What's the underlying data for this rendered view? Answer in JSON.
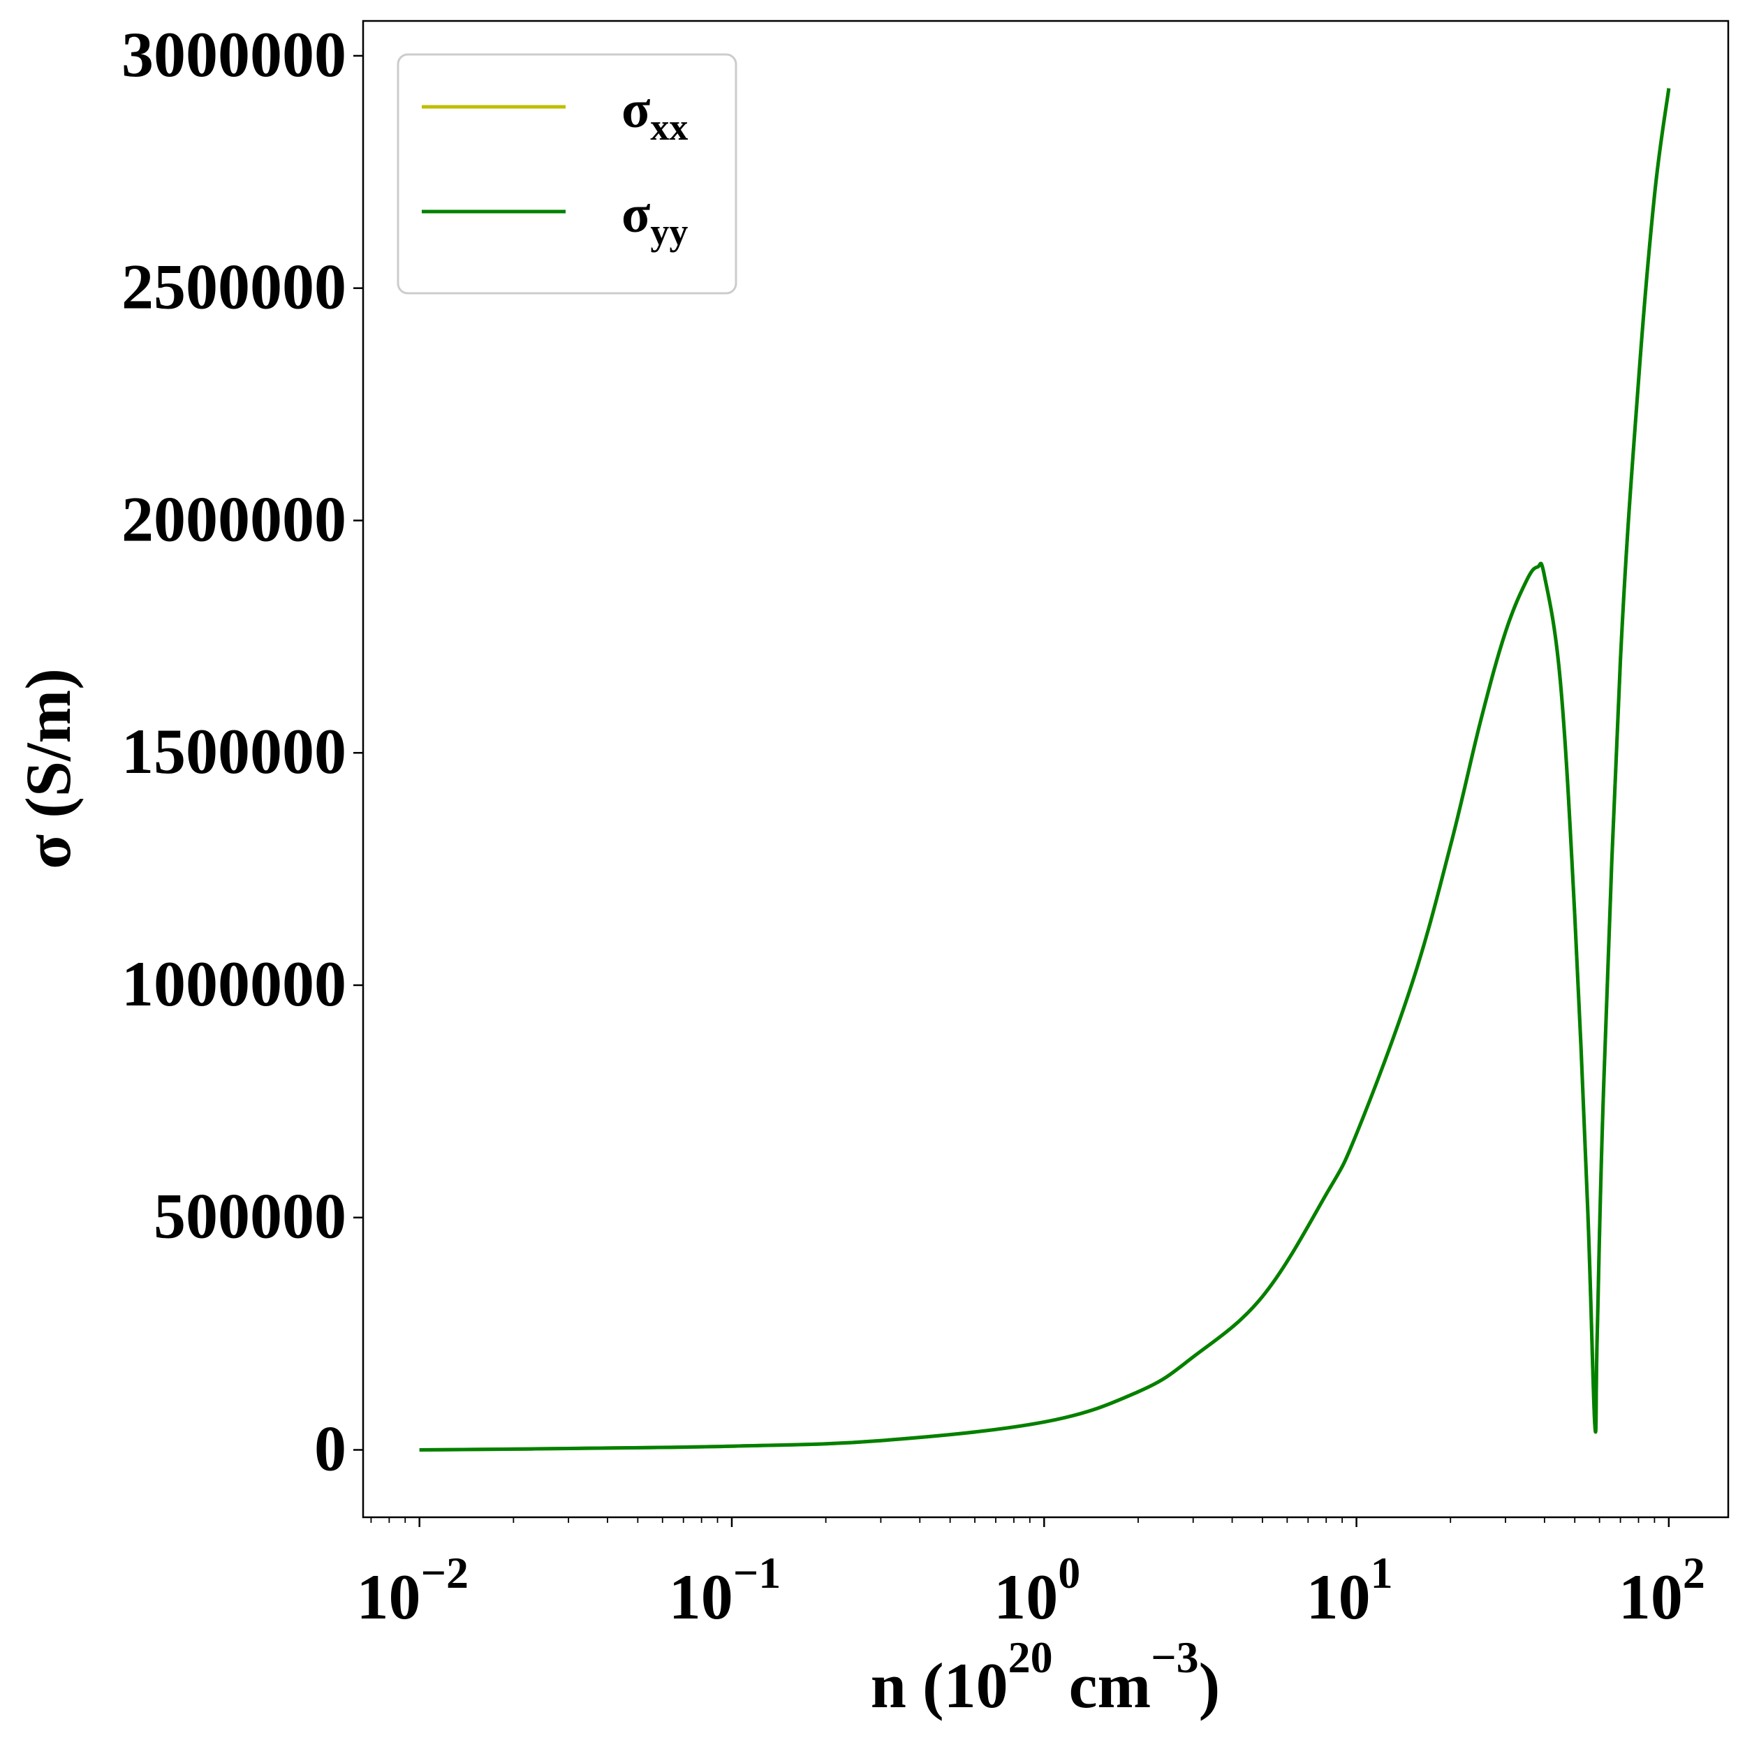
{
  "chart_data": {
    "type": "line",
    "title": "",
    "xlabel": "n (10^20 cm^-3)",
    "xlabel_parts": {
      "base": "n (10",
      "sup1": "20",
      "mid": " cm",
      "sup2": "−3",
      "end": ")"
    },
    "ylabel": "σ (S/m)",
    "x_scale": "log",
    "xlim": [
      0.0066,
      155
    ],
    "ylim": [
      -145000,
      3075000
    ],
    "x_ticks": [
      {
        "value": 0.01,
        "base": "10",
        "exp": "−2"
      },
      {
        "value": 0.1,
        "base": "10",
        "exp": "−1"
      },
      {
        "value": 1,
        "base": "10",
        "exp": "0"
      },
      {
        "value": 10,
        "base": "10",
        "exp": "1"
      },
      {
        "value": 100,
        "base": "10",
        "exp": "2"
      }
    ],
    "y_ticks": [
      {
        "value": 0,
        "label": "0"
      },
      {
        "value": 500000,
        "label": "500000"
      },
      {
        "value": 1000000,
        "label": "1000000"
      },
      {
        "value": 1500000,
        "label": "1500000"
      },
      {
        "value": 2000000,
        "label": "2000000"
      },
      {
        "value": 2500000,
        "label": "2500000"
      },
      {
        "value": 3000000,
        "label": "3000000"
      }
    ],
    "grid": false,
    "legend": {
      "position": "top-left",
      "entries": [
        {
          "symbol": "σ",
          "sub": "xx",
          "color": "#bfbf00"
        },
        {
          "symbol": "σ",
          "sub": "yy",
          "color": "#008000"
        }
      ]
    },
    "series": [
      {
        "name": "σxx",
        "color": "#bfbf00",
        "x": [
          0.01,
          0.03,
          0.1,
          0.3,
          1,
          2,
          3,
          5,
          8,
          10,
          15,
          20,
          25,
          30,
          35,
          38,
          40,
          45,
          50,
          55,
          58,
          59,
          62,
          70,
          80,
          90,
          100
        ],
        "y": [
          0,
          3000,
          8000,
          20000,
          60000,
          125000,
          200000,
          330000,
          550000,
          680000,
          1000000,
          1300000,
          1570000,
          1760000,
          1870000,
          1900000,
          1880000,
          1650000,
          1150000,
          520000,
          50000,
          250000,
          800000,
          1700000,
          2300000,
          2700000,
          2930000
        ]
      },
      {
        "name": "σyy",
        "color": "#008000",
        "x": [
          0.01,
          0.03,
          0.1,
          0.3,
          1,
          2,
          3,
          5,
          8,
          10,
          15,
          20,
          25,
          30,
          35,
          38,
          40,
          45,
          50,
          55,
          58,
          59,
          62,
          70,
          80,
          90,
          100
        ],
        "y": [
          0,
          3000,
          8000,
          20000,
          60000,
          125000,
          200000,
          330000,
          550000,
          680000,
          1000000,
          1300000,
          1570000,
          1760000,
          1870000,
          1900000,
          1880000,
          1650000,
          1150000,
          520000,
          50000,
          250000,
          800000,
          1700000,
          2300000,
          2700000,
          2930000
        ]
      }
    ]
  }
}
